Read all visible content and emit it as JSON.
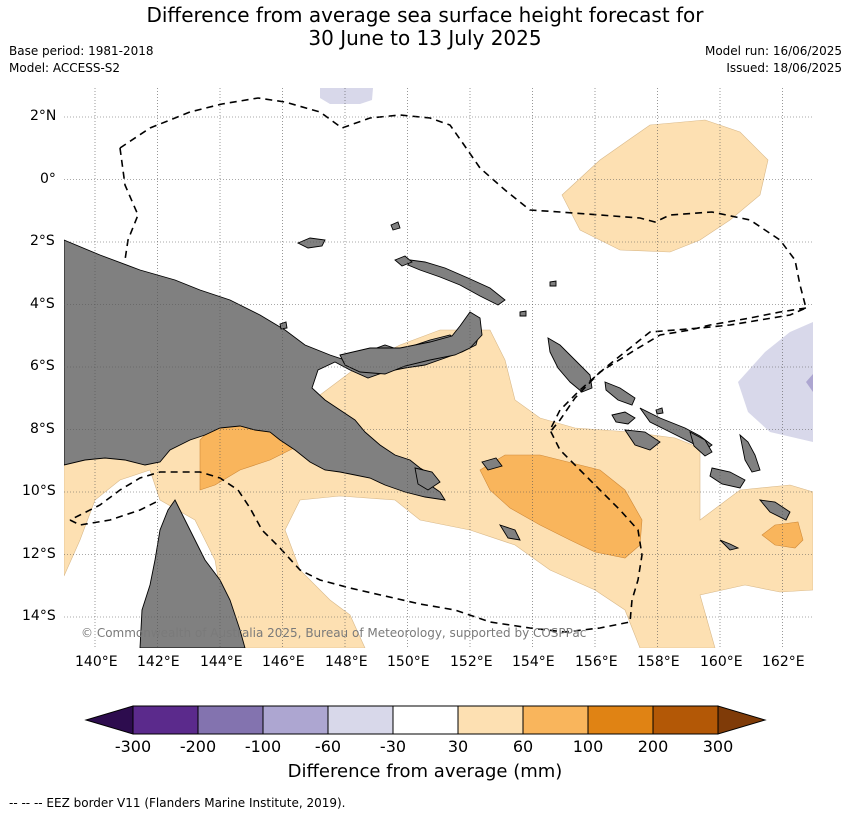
{
  "title_line1": "Difference from average sea surface height forecast for",
  "title_line2": "30 June to 13 July 2025",
  "base_period": "Base period: 1981-2018",
  "model": "Model: ACCESS-S2",
  "model_run": "Model run: 16/06/2025",
  "issued": "Issued: 18/06/2025",
  "lat_labels": [
    "2°N",
    "0°",
    "2°S",
    "4°S",
    "6°S",
    "8°S",
    "10°S",
    "12°S",
    "14°S"
  ],
  "lon_labels": [
    "140°E",
    "142°E",
    "144°E",
    "146°E",
    "148°E",
    "150°E",
    "152°E",
    "154°E",
    "156°E",
    "158°E",
    "160°E",
    "162°E"
  ],
  "copyright": "© Commonwealth of Australia 2025, Bureau of Meteorology, supported by COSPPac",
  "colorbar": {
    "label": "Difference from average (mm)",
    "ticks": [
      "-300",
      "-200",
      "-100",
      "-60",
      "-30",
      "30",
      "60",
      "100",
      "200",
      "300"
    ],
    "colors": [
      "#5b2a8c",
      "#8373af",
      "#ada6d1",
      "#d8d8ea",
      "#ffffff",
      "#fde0b2",
      "#f9b55c",
      "#e08314",
      "#b35806"
    ],
    "low_extend_color": "#2d0c4e",
    "high_extend_color": "#7f3b08"
  },
  "land_color": "#808080",
  "eez_legend": "--  --  -- EEZ border V11 (Flanders Marine Institute, 2019)."
}
